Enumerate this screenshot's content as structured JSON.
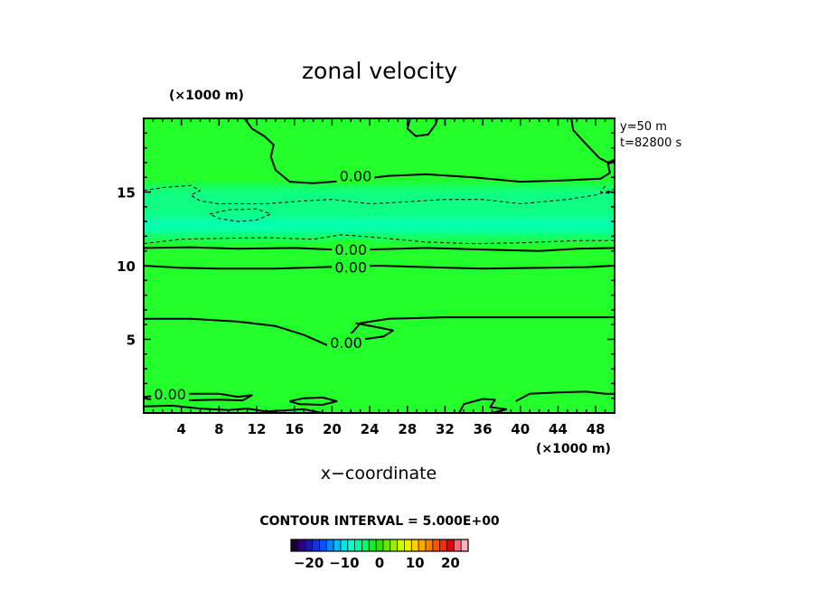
{
  "chart_data": {
    "type": "heatmap",
    "title": "zonal velocity",
    "xlabel": "x−coordinate",
    "x_unit": "(×1000 m)",
    "y_unit": "(×1000 m)",
    "xlim": [
      0,
      50
    ],
    "ylim": [
      0,
      20
    ],
    "x_ticks": [
      4,
      8,
      12,
      16,
      20,
      24,
      28,
      32,
      36,
      40,
      44,
      48
    ],
    "y_ticks": [
      5,
      10,
      15
    ],
    "info_lines": [
      "y=50  m",
      "t=82800  s"
    ],
    "contour_interval_text": "CONTOUR INTERVAL = 5.000E+00",
    "colorbar": {
      "range": [
        -25,
        25
      ],
      "tick_values": [
        -20,
        -10,
        0,
        10,
        20
      ],
      "tick_labels": [
        "−20",
        "−10",
        "0",
        "10",
        "20"
      ],
      "colors": [
        "#1a0033",
        "#2e0080",
        "#1a1aa8",
        "#1a33d9",
        "#0055ff",
        "#0088ff",
        "#00bbff",
        "#00e5ee",
        "#00ffcc",
        "#00ffa0",
        "#00ff66",
        "#11ee22",
        "#33dd00",
        "#66e600",
        "#99f000",
        "#ccff00",
        "#eeee00",
        "#ffd000",
        "#ffa800",
        "#ff8000",
        "#ff5500",
        "#ff2a00",
        "#e60000",
        "#ff6680",
        "#ffb0b8"
      ]
    },
    "field": {
      "background": "#22ff2a",
      "bands": [
        {
          "y_range": [
            11.8,
            15.4
          ],
          "center_y": 12.8,
          "color": "#00ffd0",
          "note": "negative velocity band"
        }
      ]
    },
    "contour_labels": [
      {
        "text": "0.00",
        "x": 22.5,
        "y": 16.1
      },
      {
        "text": "0.00",
        "x": 22.0,
        "y": 11.1
      },
      {
        "text": "0.00",
        "x": 22.0,
        "y": 9.9
      },
      {
        "text": "0.00",
        "x": 21.5,
        "y": 4.8
      },
      {
        "text": "0.00",
        "x": 2.8,
        "y": 1.3
      }
    ],
    "contours": [
      {
        "style": "solid",
        "points": [
          [
            0,
            11.2
          ],
          [
            5,
            11.25
          ],
          [
            10,
            11.15
          ],
          [
            16,
            11.2
          ],
          [
            20,
            11.1
          ],
          [
            24,
            11.1
          ],
          [
            30,
            11.2
          ],
          [
            36,
            11.1
          ],
          [
            42,
            11.0
          ],
          [
            46,
            11.15
          ],
          [
            50,
            11.2
          ]
        ]
      },
      {
        "style": "solid",
        "points": [
          [
            0,
            10.0
          ],
          [
            4,
            9.85
          ],
          [
            8,
            9.8
          ],
          [
            14,
            9.8
          ],
          [
            19,
            9.9
          ],
          [
            25,
            10.0
          ],
          [
            30,
            9.9
          ],
          [
            36,
            9.8
          ],
          [
            42,
            9.85
          ],
          [
            47,
            9.9
          ],
          [
            50,
            10.0
          ]
        ]
      },
      {
        "style": "solid",
        "points": [
          [
            10.7,
            20
          ],
          [
            11.5,
            19.3
          ],
          [
            12.8,
            18.8
          ],
          [
            13.8,
            18.2
          ],
          [
            13.5,
            17.4
          ],
          [
            14.0,
            16.5
          ],
          [
            15.5,
            15.7
          ],
          [
            18,
            15.6
          ],
          [
            22,
            15.8
          ],
          [
            26,
            16.1
          ],
          [
            30,
            16.2
          ],
          [
            35,
            16.0
          ],
          [
            40,
            15.7
          ],
          [
            45,
            15.8
          ],
          [
            48.5,
            15.9
          ],
          [
            49.5,
            16.3
          ],
          [
            49.3,
            16.9
          ],
          [
            50,
            17.1
          ]
        ]
      },
      {
        "style": "solid",
        "points": [
          [
            28.3,
            20
          ],
          [
            28.0,
            19.3
          ],
          [
            28.9,
            18.8
          ],
          [
            30.2,
            18.9
          ],
          [
            31.0,
            19.6
          ],
          [
            31.2,
            20
          ]
        ]
      },
      {
        "style": "solid",
        "points": [
          [
            45.4,
            20
          ],
          [
            45.6,
            19.2
          ],
          [
            46.9,
            18.3
          ],
          [
            48.4,
            17.3
          ],
          [
            49.3,
            17.0
          ],
          [
            50,
            17.2
          ]
        ]
      },
      {
        "style": "solid",
        "points": [
          [
            0,
            6.4
          ],
          [
            5,
            6.4
          ],
          [
            10,
            6.2
          ],
          [
            14,
            5.9
          ],
          [
            17,
            5.3
          ],
          [
            19.5,
            4.6
          ],
          [
            21,
            4.8
          ],
          [
            22.2,
            5.5
          ],
          [
            23,
            6.1
          ],
          [
            26,
            6.4
          ],
          [
            32,
            6.5
          ],
          [
            40,
            6.5
          ],
          [
            50,
            6.5
          ]
        ]
      },
      {
        "style": "solid",
        "points": [
          [
            22.5,
            6.1
          ],
          [
            25,
            5.8
          ],
          [
            26.5,
            5.6
          ],
          [
            25.5,
            5.2
          ],
          [
            23.3,
            5.0
          ],
          [
            22.5,
            5.4
          ]
        ]
      },
      {
        "style": "solid",
        "points": [
          [
            0,
            1.1
          ],
          [
            4,
            1.3
          ],
          [
            8,
            1.3
          ],
          [
            10,
            1.1
          ],
          [
            11.5,
            1.2
          ],
          [
            10.5,
            0.85
          ],
          [
            8,
            0.9
          ],
          [
            4,
            0.85
          ],
          [
            1,
            0.9
          ],
          [
            0,
            1.0
          ]
        ]
      },
      {
        "style": "solid",
        "points": [
          [
            15.5,
            0.8
          ],
          [
            17,
            1.0
          ],
          [
            19,
            1.05
          ],
          [
            20.5,
            0.8
          ],
          [
            19,
            0.55
          ],
          [
            16.5,
            0.6
          ],
          [
            15.5,
            0.8
          ]
        ]
      },
      {
        "style": "solid",
        "points": [
          [
            33.5,
            0
          ],
          [
            34.0,
            0.6
          ],
          [
            36,
            0.95
          ],
          [
            37.3,
            0.9
          ],
          [
            36.8,
            0.4
          ],
          [
            38.5,
            0.25
          ],
          [
            37,
            0
          ],
          [
            33.5,
            0
          ]
        ]
      },
      {
        "style": "solid",
        "points": [
          [
            39.5,
            0.8
          ],
          [
            41,
            1.3
          ],
          [
            44,
            1.4
          ],
          [
            47,
            1.45
          ],
          [
            49,
            1.3
          ],
          [
            50,
            1.3
          ]
        ]
      },
      {
        "style": "solid",
        "points": [
          [
            0,
            0.45
          ],
          [
            3,
            0.5
          ],
          [
            6,
            0.3
          ],
          [
            9,
            0.2
          ],
          [
            11,
            0.3
          ],
          [
            13,
            0.1
          ],
          [
            17,
            0.25
          ],
          [
            19,
            0.0
          ]
        ]
      },
      {
        "style": "dashed",
        "points": [
          [
            0,
            11.5
          ],
          [
            4,
            11.8
          ],
          [
            8,
            11.85
          ],
          [
            13,
            11.9
          ],
          [
            18,
            11.8
          ],
          [
            21,
            12.1
          ],
          [
            25,
            11.9
          ],
          [
            30,
            11.6
          ],
          [
            35,
            11.5
          ],
          [
            40,
            11.55
          ],
          [
            46,
            11.7
          ],
          [
            50,
            11.7
          ]
        ]
      },
      {
        "style": "dashed",
        "points": [
          [
            0,
            15.1
          ],
          [
            2,
            15.3
          ],
          [
            5,
            15.45
          ],
          [
            6,
            15.1
          ],
          [
            5,
            14.8
          ],
          [
            6,
            14.4
          ],
          [
            8,
            14.2
          ],
          [
            13,
            14.2
          ],
          [
            17,
            14.4
          ],
          [
            20,
            14.5
          ],
          [
            24,
            14.2
          ],
          [
            27,
            14.3
          ],
          [
            32,
            14.5
          ],
          [
            36,
            14.5
          ],
          [
            40,
            14.2
          ],
          [
            45,
            14.5
          ],
          [
            48,
            14.8
          ],
          [
            50,
            15.2
          ]
        ]
      },
      {
        "style": "dashed",
        "points": [
          [
            7,
            13.5
          ],
          [
            9,
            13.8
          ],
          [
            12,
            13.85
          ],
          [
            13.5,
            13.5
          ],
          [
            12,
            13.1
          ],
          [
            10,
            13.0
          ],
          [
            8,
            13.2
          ],
          [
            7,
            13.5
          ]
        ]
      },
      {
        "style": "dashed",
        "points": [
          [
            49,
            15.4
          ],
          [
            48.5,
            15.0
          ],
          [
            49.5,
            14.9
          ],
          [
            50,
            15.0
          ]
        ]
      }
    ]
  }
}
